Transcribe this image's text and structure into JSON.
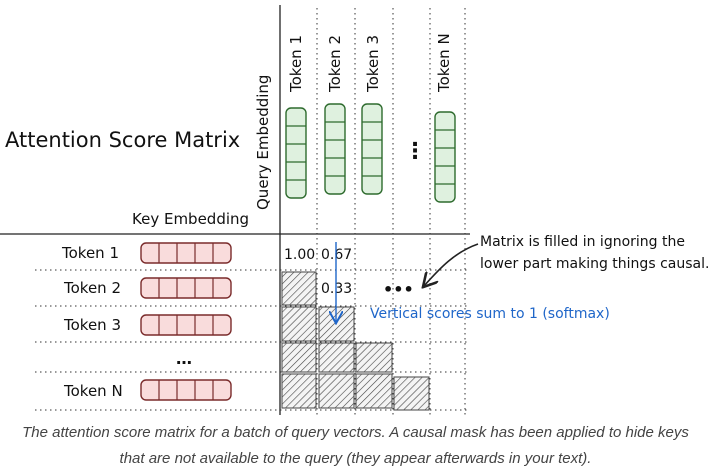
{
  "title": "Attention Score Matrix",
  "query_axis_label": "Query Embedding",
  "key_axis_label": "Key Embedding",
  "query_tokens": [
    "Token 1",
    "Token 2",
    "Token 3",
    "Token N"
  ],
  "query_ellipsis": "⋮",
  "key_tokens": [
    "Token 1",
    "Token 2",
    "Token 3",
    "Token N"
  ],
  "key_ellipsis": "…",
  "scores": [
    {
      "row": 0,
      "col": 0,
      "value": "1.00"
    },
    {
      "row": 0,
      "col": 1,
      "value": "0.67"
    },
    {
      "row": 1,
      "col": 1,
      "value": "0.33"
    }
  ],
  "row_ellipsis": "•••",
  "annotation_causal": [
    "Matrix is filled in ignoring the",
    "lower part making things causal."
  ],
  "annotation_softmax": "Vertical scores sum to 1 (softmax)",
  "caption": [
    "The attention score matrix for a batch of query vectors. A causal mask has been applied to hide keys",
    "that are not available to the query (they appear afterwards in your text)."
  ],
  "colors": {
    "query_fill": "#dff1df",
    "query_stroke": "#2e6b2e",
    "key_fill": "#f9dcdc",
    "key_stroke": "#7a2b2b",
    "mask": "#555555",
    "softmax": "#1f66c9"
  }
}
